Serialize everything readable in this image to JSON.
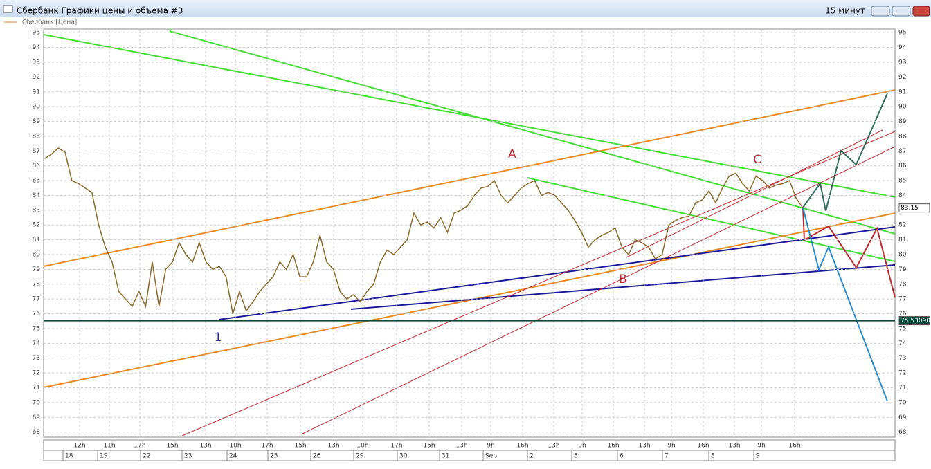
{
  "window": {
    "title": "Сбербанк Графики цены и объема #3",
    "interval": "15 минут"
  },
  "chart_data": {
    "type": "line",
    "series": [
      {
        "name": "Сбербанк [Цена]",
        "color": "#8b6a2b",
        "values": [
          86.5,
          86.8,
          87.2,
          86.9,
          85.0,
          84.8,
          84.5,
          84.2,
          82.0,
          80.5,
          79.5,
          77.5,
          77.0,
          76.5,
          77.5,
          76.5,
          79.5,
          76.5,
          79.0,
          79.5,
          80.8,
          80.0,
          79.5,
          80.8,
          79.5,
          79.0,
          79.2,
          78.5,
          76.0,
          77.5,
          76.2,
          76.8,
          77.5,
          78.0,
          78.5,
          79.5,
          79.0,
          80.0,
          78.5,
          78.5,
          79.5,
          81.3,
          79.5,
          79.0,
          77.5,
          77.0,
          77.3,
          76.8,
          77.5,
          78.0,
          79.5,
          80.3,
          80.0,
          80.5,
          81.0,
          82.8,
          82.0,
          82.2,
          81.8,
          82.5,
          81.5,
          82.8,
          83.0,
          83.3,
          84.0,
          84.5,
          84.6,
          85.0,
          84.0,
          83.5,
          84.0,
          84.5,
          84.8,
          85.0,
          84.0,
          84.2,
          84.0,
          83.5,
          83.0,
          82.3,
          81.5,
          80.5,
          81.0,
          81.3,
          81.5,
          81.8,
          80.5,
          80.0,
          81.0,
          80.8,
          80.5,
          79.7,
          80.0,
          82.0,
          82.3,
          82.5,
          82.6,
          83.5,
          83.7,
          84.3,
          83.5,
          84.5,
          85.3,
          85.5,
          84.8,
          84.3,
          85.3,
          85.0,
          84.5,
          84.7,
          84.8,
          85.0,
          83.8,
          83.15
        ]
      }
    ],
    "ylim": [
      67.75,
      95.15
    ],
    "yticks": [
      68,
      69,
      70,
      71,
      72,
      73,
      74,
      75,
      76,
      77,
      78,
      79,
      80,
      81,
      82,
      83,
      84,
      85,
      86,
      87,
      88,
      89,
      90,
      91,
      92,
      93,
      94,
      95
    ],
    "grid": true,
    "hour_labels": [
      "12h",
      "11h",
      "17h",
      "15h",
      "13h",
      "10h",
      "17h",
      "15h",
      "13h",
      "10h",
      "17h",
      "15h",
      "13h",
      "9h",
      "16h",
      "13h",
      "9h",
      "16h",
      "13h",
      "9h",
      "16h",
      "13h",
      "9h",
      "16h"
    ],
    "date_labels": [
      "18",
      "19",
      "22",
      "23",
      "24",
      "25",
      "26",
      "29",
      "30",
      "31",
      "Sep",
      "2",
      "5",
      "6",
      "7",
      "8",
      "9"
    ],
    "annotations": [
      "A",
      "B",
      "C",
      "1"
    ],
    "price_tags": [
      {
        "value": 83.15,
        "label": "83.15"
      },
      {
        "value": 75.5309,
        "label": "75.53090"
      }
    ]
  }
}
